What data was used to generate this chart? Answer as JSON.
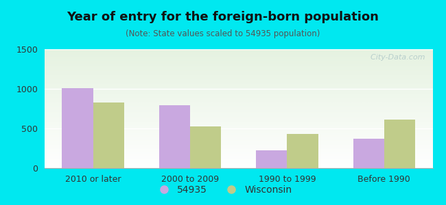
{
  "title": "Year of entry for the foreign-born population",
  "subtitle": "(Note: State values scaled to 54935 population)",
  "categories": [
    "2010 or later",
    "2000 to 2009",
    "1990 to 1999",
    "Before 1990"
  ],
  "values_54935": [
    1005,
    790,
    220,
    375
  ],
  "values_wisconsin": [
    830,
    530,
    435,
    610
  ],
  "color_54935": "#c9a8e0",
  "color_wisconsin": "#c0cc8a",
  "ylim": [
    0,
    1500
  ],
  "yticks": [
    0,
    500,
    1000,
    1500
  ],
  "legend_label_1": "54935",
  "legend_label_2": "Wisconsin",
  "bar_width": 0.32,
  "background_top": "#ffffff",
  "background_bottom": "#d4edda",
  "background_color_fig": "#00e8f0",
  "watermark": "  City-Data.com",
  "title_fontsize": 13,
  "subtitle_fontsize": 8.5,
  "tick_fontsize": 9
}
